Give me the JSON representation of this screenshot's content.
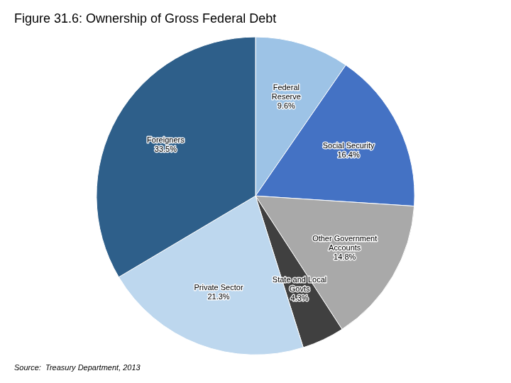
{
  "chart_data": {
    "type": "pie",
    "title": "Figure 31.6: Ownership of Gross Federal Debt",
    "source": "Source:  Treasury Department, 2013",
    "categories": [
      "Federal\nReserve\n9.6%",
      "Social Security\n16.4%",
      "Other Government\nAccounts\n14.8%",
      "State and Local\nGovts\n4.3%",
      "Private Sector\n21.3%",
      "Foreigners\n33.5%"
    ],
    "values": [
      9.6,
      16.4,
      14.8,
      4.3,
      21.3,
      33.5
    ],
    "colors": [
      "#9DC3E6",
      "#4472C4",
      "#A9A9A9",
      "#404040",
      "#BDD7EE",
      "#2E5F8A"
    ]
  }
}
